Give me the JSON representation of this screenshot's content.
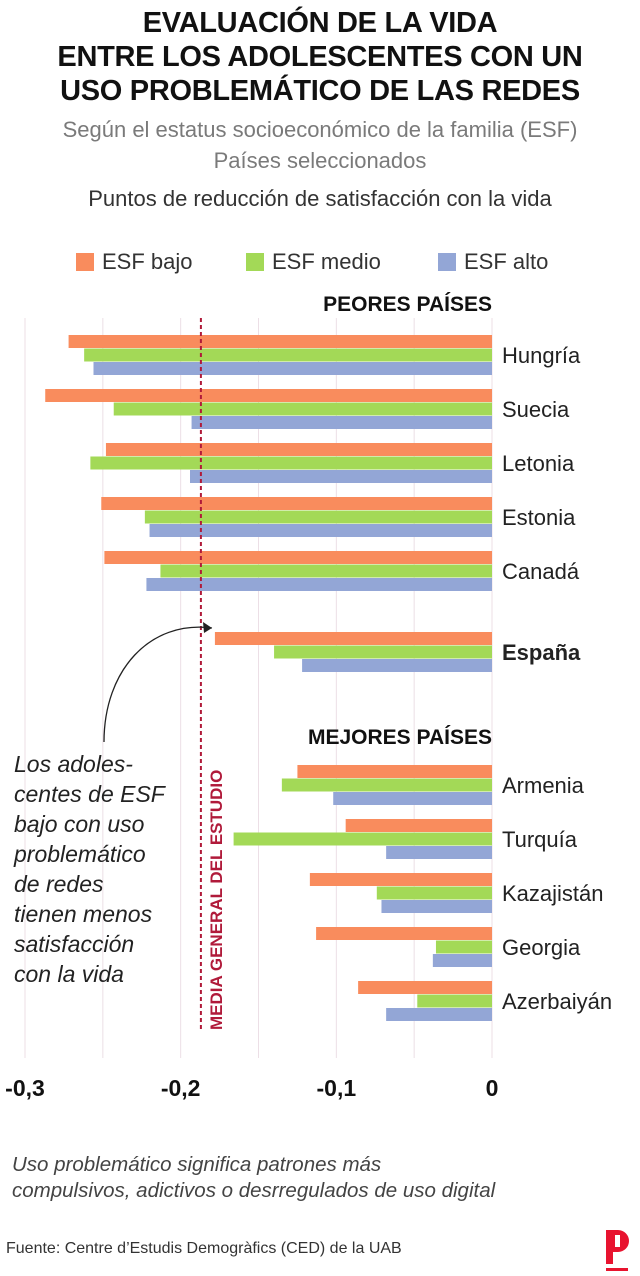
{
  "title_lines": [
    "EVALUACIÓN DE LA VIDA",
    "ENTRE LOS ADOLESCENTES CON UN",
    "USO PROBLEMÁTICO DE LAS REDES"
  ],
  "subtitle_lines": [
    "Según el estatus socioeconómico de la familia (ESF)",
    "Países seleccionados"
  ],
  "unit_label": "Puntos de reducción de satisfacción con la vida",
  "colors": {
    "bajo": "#f98c5d",
    "medio": "#a3d957",
    "alto": "#93a6d6",
    "mean_line": "#b01a3a"
  },
  "chart_data": {
    "type": "bar",
    "orientation": "horizontal",
    "xlim": [
      -0.3,
      0
    ],
    "xticks": [
      "-0,3",
      "-0,2",
      "-0,1",
      "0"
    ],
    "grid": true,
    "legend_position": "top",
    "series": [
      {
        "name": "ESF bajo"
      },
      {
        "name": "ESF medio"
      },
      {
        "name": "ESF alto"
      }
    ],
    "groups": [
      {
        "label": "PEORES PAÍSES",
        "countries": [
          {
            "name": "Hungría",
            "values": [
              -0.272,
              -0.262,
              -0.256
            ]
          },
          {
            "name": "Suecia",
            "values": [
              -0.287,
              -0.243,
              -0.193
            ]
          },
          {
            "name": "Letonia",
            "values": [
              -0.248,
              -0.258,
              -0.194
            ]
          },
          {
            "name": "Estonia",
            "values": [
              -0.251,
              -0.223,
              -0.22
            ]
          },
          {
            "name": "Canadá",
            "values": [
              -0.249,
              -0.213,
              -0.222
            ]
          }
        ]
      },
      {
        "label": "",
        "countries": [
          {
            "name": "España",
            "values": [
              -0.178,
              -0.14,
              -0.122
            ],
            "highlight": true
          }
        ]
      },
      {
        "label": "MEJORES PAÍSES",
        "countries": [
          {
            "name": "Armenia",
            "values": [
              -0.125,
              -0.135,
              -0.102
            ]
          },
          {
            "name": "Turquía",
            "values": [
              -0.094,
              -0.166,
              -0.068
            ]
          },
          {
            "name": "Kazajistán",
            "values": [
              -0.117,
              -0.074,
              -0.071
            ]
          },
          {
            "name": "Georgia",
            "values": [
              -0.113,
              -0.036,
              -0.038
            ]
          },
          {
            "name": "Azerbaiyán",
            "values": [
              -0.086,
              -0.048,
              -0.068
            ]
          }
        ]
      }
    ],
    "mean_line": {
      "value": -0.187,
      "label": "MEDIA GENERAL DEL ESTUDIO"
    },
    "annotation_lines": [
      "Los adoles-",
      "centes de ESF",
      "bajo con uso",
      "problemático",
      "de redes",
      "tienen menos",
      "satisfacción",
      "con la vida"
    ]
  },
  "footnote_lines": [
    "Uso problemático significa patrones más",
    "compulsivos, adictivos o desrregulados de uso digital"
  ],
  "source": "Fuente: Centre d’Estudis Demogràfics (CED) de la UAB"
}
